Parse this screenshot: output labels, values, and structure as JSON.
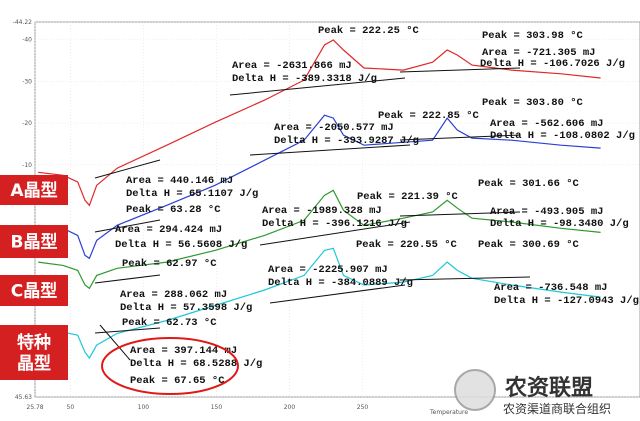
{
  "chart_data": {
    "type": "line",
    "xlim": [
      25.78,
      440
    ],
    "ylim": [
      -44.22,
      45.63
    ],
    "xticks": [
      25.78,
      50,
      100,
      150,
      200,
      250
    ],
    "yticks": [
      -44.22,
      -40,
      -30,
      -20,
      -10,
      45.63
    ],
    "grid": true,
    "x_label": "Temperature",
    "x": [
      28,
      45,
      55,
      60,
      63,
      68,
      82,
      116,
      149,
      183,
      210,
      224,
      230,
      237,
      251,
      278,
      298,
      308,
      315,
      325,
      352,
      386,
      413
    ],
    "series": [
      {
        "name": "A晶型",
        "color": "#e02828",
        "values": [
          -8.2,
          -7.5,
          -5.9,
          -1.5,
          -0.3,
          -5.1,
          -9.2,
          -14.7,
          -20.2,
          -25.5,
          -30.3,
          -38.7,
          -39.9,
          -37.5,
          -33.2,
          -32.7,
          -34.6,
          -37.5,
          -36.3,
          -33.9,
          -32.7,
          -31.8,
          -30.8
        ]
      },
      {
        "name": "B晶型",
        "color": "#2b3fd6",
        "values": [
          4.5,
          5.2,
          6.9,
          11.7,
          12.4,
          8.1,
          4.5,
          -0.3,
          -5.1,
          -11.1,
          -15.9,
          -21.9,
          -21.2,
          -17.1,
          -14.7,
          -15.4,
          -15.9,
          -21.2,
          -18.3,
          -16.4,
          -15.9,
          -14.7,
          -14.0
        ]
      },
      {
        "name": "C晶型",
        "color": "#2e9a2e",
        "values": [
          13.3,
          14.1,
          15.3,
          18.8,
          19.6,
          16.5,
          14.8,
          13.3,
          10.5,
          6.9,
          3.3,
          -2.7,
          -3.9,
          0.9,
          4.5,
          2.8,
          1.3,
          -1.5,
          0.4,
          2.8,
          3.7,
          5.2,
          6.2
        ]
      },
      {
        "name": "特种晶型",
        "color": "#1ec8d8",
        "values": [
          30.4,
          30.1,
          30.8,
          34.9,
          36.3,
          33.2,
          30.4,
          27.3,
          23.7,
          20.0,
          16.5,
          10.5,
          10.0,
          16.5,
          18.8,
          18.1,
          16.5,
          13.3,
          15.3,
          17.2,
          18.8,
          20.5,
          21.7
        ]
      }
    ],
    "sample_labels": [
      [
        "A晶型"
      ],
      [
        "B晶型"
      ],
      [
        "C晶型"
      ],
      [
        "特种",
        "晶型"
      ]
    ],
    "annotations": [
      "Peak = 222.25 °C",
      "Peak = 303.98 °C",
      "Area = -2631.866 mJ",
      "Delta H = -389.3318 J/g",
      "Area = -721.305 mJ",
      "Delta H = -106.7026 J/g",
      "Peak = 222.85 °C",
      "Peak = 303.80 °C",
      "Area = -2050.577 mJ",
      "Delta H = -393.9287 J/g",
      "Area = -562.606 mJ",
      "Delta H = -108.0802 J/g",
      "Area = 440.146 mJ",
      "Delta H = 65.1107 J/g",
      "Peak = 63.28 °C",
      "Peak = 221.39 °C",
      "Peak = 301.66 °C",
      "Area = -1989.328 mJ",
      "Delta H = -396.1216 J/g",
      "Area = -493.905 mJ",
      "Delta H = -98.3480 J/g",
      "Area = 294.424 mJ",
      "Delta H = 56.5608 J/g",
      "Peak = 62.97 °C",
      "Peak = 220.55 °C",
      "Peak = 300.69 °C",
      "Area = -2225.907 mJ",
      "Delta H = -384.0889 J/g",
      "Area = -736.548 mJ",
      "Delta H = -127.0943 J/g",
      "Area = 288.062 mJ",
      "Delta H = 57.3598 J/g",
      "Peak = 62.73 °C",
      "Area = 397.144 mJ",
      "Delta H = 68.5288 J/g",
      "Peak = 67.65 °C"
    ],
    "watermark": {
      "title": "农资联盟",
      "subtitle": "农资渠道商联合组织"
    }
  }
}
